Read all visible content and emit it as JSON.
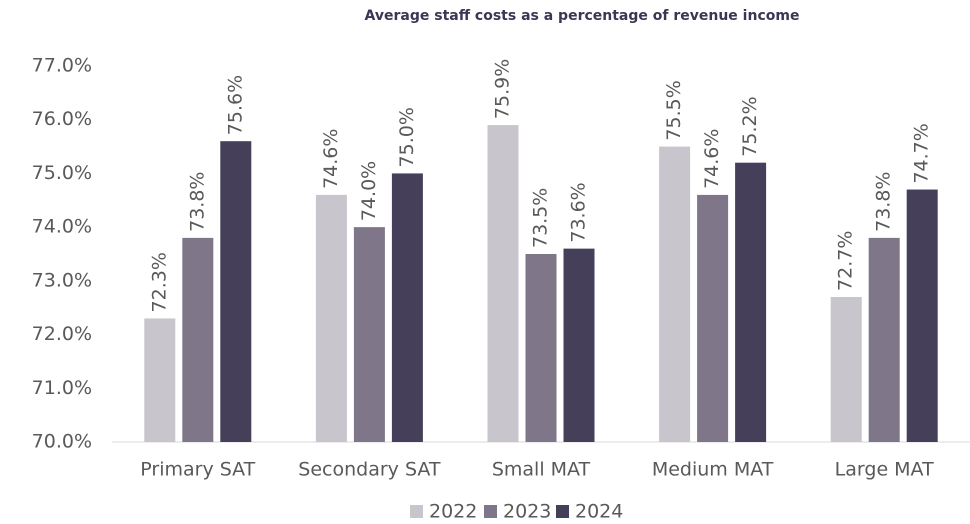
{
  "chart_data": {
    "type": "bar",
    "title": "Average staff costs as a percentage of revenue income",
    "categories": [
      "Primary SAT",
      "Secondary SAT",
      "Small MAT",
      "Medium MAT",
      "Large MAT"
    ],
    "series": [
      {
        "name": "2022",
        "color": "#c8c5cc",
        "values": [
          72.3,
          74.6,
          75.9,
          75.5,
          72.7
        ],
        "value_labels": [
          "72.3%",
          "74.6%",
          "75.9%",
          "75.5%",
          "72.7%"
        ]
      },
      {
        "name": "2023",
        "color": "#7f7689",
        "values": [
          73.8,
          74.0,
          73.5,
          74.6,
          73.8
        ],
        "value_labels": [
          "73.8%",
          "74.0%",
          "73.5%",
          "74.6%",
          "73.8%"
        ]
      },
      {
        "name": "2024",
        "color": "#453f5a",
        "values": [
          75.6,
          75.0,
          73.6,
          75.2,
          74.7
        ],
        "value_labels": [
          "75.6%",
          "75.0%",
          "73.6%",
          "75.2%",
          "74.7%"
        ]
      }
    ],
    "ylim": [
      70,
      77
    ],
    "yticks": [
      {
        "value": 70,
        "label": "70.0%"
      },
      {
        "value": 71,
        "label": "71.0%"
      },
      {
        "value": 72,
        "label": "72.0%"
      },
      {
        "value": 73,
        "label": "73.0%"
      },
      {
        "value": 74,
        "label": "74.0%"
      },
      {
        "value": 75,
        "label": "75.0%"
      },
      {
        "value": 76,
        "label": "76.0%"
      },
      {
        "value": 77,
        "label": "77.0%"
      }
    ],
    "grid": false,
    "legend": "bottom"
  }
}
